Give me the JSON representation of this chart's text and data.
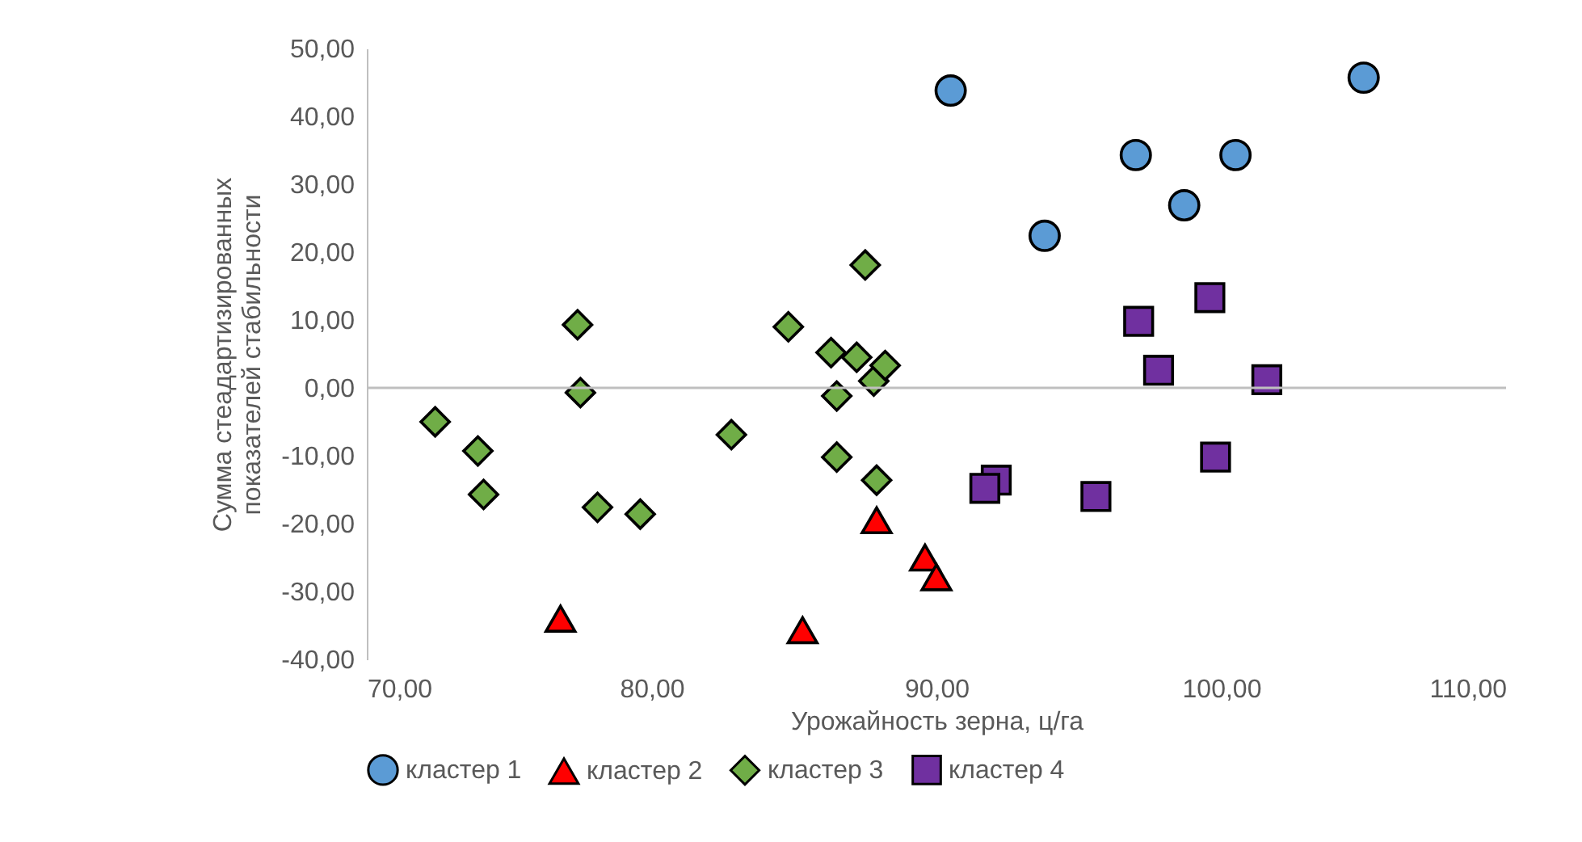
{
  "chart_data": {
    "type": "scatter",
    "xlabel": "Урожайность зерна, ц/га",
    "ylabel": "Сумма стеадартизированных показателей стабильности",
    "xlim": [
      70,
      110
    ],
    "xticks": [
      {
        "value": 70,
        "label": "70,00"
      },
      {
        "value": 80,
        "label": "80,00"
      },
      {
        "value": 90,
        "label": "90,00"
      },
      {
        "value": 100,
        "label": "100,00"
      },
      {
        "value": 110,
        "label": "110,00"
      }
    ],
    "ylim": [
      -40,
      50
    ],
    "yticks": [
      {
        "value": -40,
        "label": "-40,00"
      },
      {
        "value": -30,
        "label": "-30,00"
      },
      {
        "value": -20,
        "label": "-20,00"
      },
      {
        "value": -10,
        "label": "-10,00"
      },
      {
        "value": 0,
        "label": "0,00"
      },
      {
        "value": 10,
        "label": "10,00"
      },
      {
        "value": 20,
        "label": "20,00"
      },
      {
        "value": 30,
        "label": "30,00"
      },
      {
        "value": 40,
        "label": "40,00"
      },
      {
        "value": 50,
        "label": "50,00"
      }
    ],
    "grid": false,
    "legend": "bottom",
    "ref_lines": [
      {
        "axis": "y",
        "value": 0,
        "color": "#bfbfbf"
      }
    ],
    "series": [
      {
        "name": "кластер 1",
        "color": "#5b9bd5",
        "marker": "circle",
        "x": [
          90.5,
          93.8,
          97.0,
          98.7,
          100.5,
          105.0
        ],
        "values": [
          43.8,
          22.4,
          34.3,
          26.9,
          34.3,
          45.7
        ]
      },
      {
        "name": "кластер 2",
        "color": "#ff0000",
        "marker": "triangle",
        "x": [
          76.8,
          85.3,
          87.9,
          89.6,
          90.0
        ],
        "values": [
          -34.0,
          -35.7,
          -19.5,
          -25.0,
          -27.9
        ]
      },
      {
        "name": "кластер 3",
        "color": "#70ad47",
        "marker": "diamond",
        "x": [
          72.4,
          73.9,
          74.1,
          77.4,
          77.5,
          78.1,
          79.6,
          82.8,
          84.8,
          86.3,
          86.5,
          86.5,
          87.2,
          87.5,
          87.8,
          88.2,
          87.9
        ],
        "values": [
          -5.0,
          -9.3,
          -15.7,
          9.3,
          -0.7,
          -17.6,
          -18.6,
          -6.9,
          9.0,
          5.2,
          -1.2,
          -10.2,
          4.5,
          18.1,
          1.0,
          3.3,
          -13.6
        ]
      },
      {
        "name": "кластер 4",
        "color": "#7030a0",
        "marker": "square",
        "x": [
          97.1,
          99.6,
          97.8,
          101.6,
          99.8,
          92.1,
          91.7,
          95.6
        ],
        "values": [
          9.8,
          13.3,
          2.6,
          1.2,
          -10.2,
          -13.6,
          -14.8,
          -16.0
        ]
      }
    ]
  }
}
